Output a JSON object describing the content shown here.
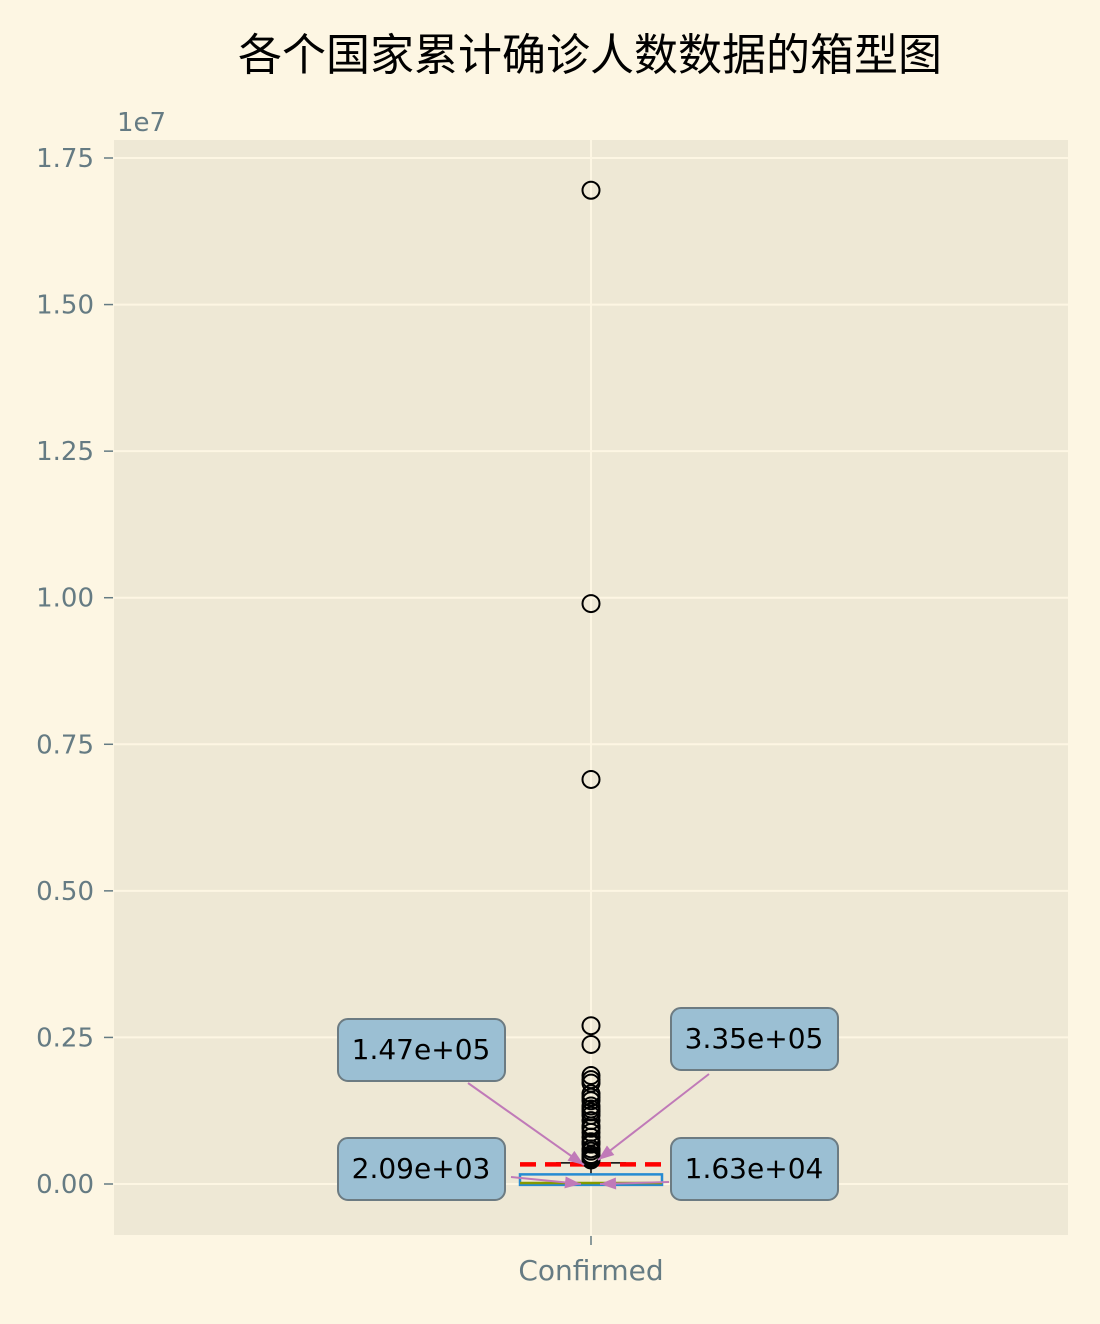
{
  "chart_data": {
    "type": "box",
    "title": "各个国家累计确诊人数数据的箱型图",
    "categories": [
      "Confirmed"
    ],
    "xlabel": "",
    "ylabel": "",
    "y_offset_label": "1e7",
    "ylim": [
      -850000,
      17800000
    ],
    "y_ticks": [
      0,
      2500000,
      5000000,
      7500000,
      10000000,
      12500000,
      15000000,
      17500000
    ],
    "y_tick_labels": [
      "0.00",
      "0.25",
      "0.50",
      "0.75",
      "1.00",
      "1.25",
      "1.50",
      "1.75"
    ],
    "grid": true,
    "colors": {
      "figure_bg": "#fdf6e3",
      "axes_bg": "#eee8d5",
      "grid": "#fdf6e3",
      "tick_text": "#657b83",
      "box": "#268bd2",
      "median": "#859900",
      "mean": "#ff0000",
      "outlier": "#000000",
      "annotation_box": "#9bbfd3",
      "annotation_edge": "#6c7b82",
      "arrow": "#c07ab8"
    },
    "series": [
      {
        "values": {
          "whisker_low": 0,
          "q1": 2090,
          "median": 16300,
          "q3": 147000,
          "mean": 335000,
          "whisker_high": 360000,
          "outliers": [
            16950000,
            9900000,
            6900000,
            2700000,
            2380000,
            1850000,
            1780000,
            1720000,
            1540000,
            1480000,
            1420000,
            1330000,
            1280000,
            1230000,
            1170000,
            1080000,
            990000,
            950000,
            880000,
            800000,
            720000,
            680000,
            600000,
            560000,
            500000,
            470000,
            440000,
            410000
          ]
        }
      }
    ],
    "annotations": [
      {
        "text": "1.47e+05",
        "position": "upper-left",
        "target": 147000
      },
      {
        "text": "3.35e+05",
        "position": "upper-right",
        "target": 335000
      },
      {
        "text": "2.09e+03",
        "position": "lower-left",
        "target": 2090
      },
      {
        "text": "1.63e+04",
        "position": "lower-right",
        "target": 16300
      }
    ]
  }
}
